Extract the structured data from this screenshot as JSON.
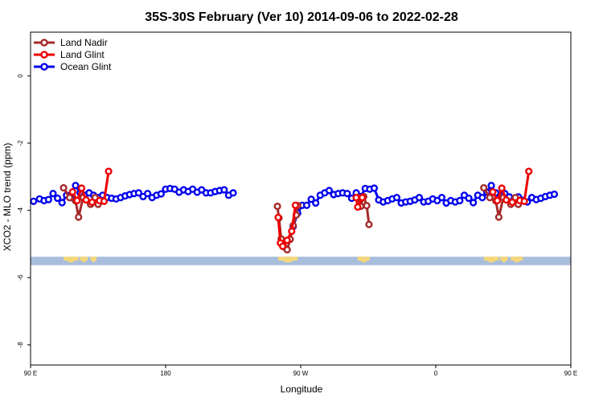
{
  "chart_data": {
    "type": "line",
    "title": "35S-30S February (Ver 10)   2014-09-06 to 2022-02-28",
    "xlabel": "Longitude",
    "ylabel": "XCO2 - MLO trend (ppm)",
    "xlim": [
      90,
      450
    ],
    "ylim": [
      -8.6,
      1.3
    ],
    "x_ticks": [
      {
        "value": 90,
        "label": "90 E"
      },
      {
        "value": 180,
        "label": "180"
      },
      {
        "value": 270,
        "label": "90 W"
      },
      {
        "value": 360,
        "label": "0"
      },
      {
        "value": 450,
        "label": "90 E"
      },
      {
        "value": 540,
        "label": "180"
      }
    ],
    "y_ticks": [
      {
        "value": 0,
        "label": "0"
      },
      {
        "value": -2,
        "label": "-2"
      },
      {
        "value": -4,
        "label": "-4"
      },
      {
        "value": -6,
        "label": "-6"
      },
      {
        "value": -8,
        "label": "-8"
      }
    ],
    "legend_position": "top-left",
    "land_strip": {
      "y_range": [
        -5.63,
        -5.38
      ],
      "ocean_color": "#a8bedc",
      "land_color": "#f5d77a"
    },
    "series": [
      {
        "name": "Land Nadir",
        "color": "#a52a2a",
        "segments": [
          [
            [
              112,
              -3.33
            ],
            [
              116,
              -3.62
            ],
            [
              120,
              -3.72
            ],
            [
              122,
              -4.2
            ],
            [
              125,
              -3.62
            ],
            [
              130,
              -3.82
            ],
            [
              133,
              -3.62
            ],
            [
              135,
              -3.82
            ]
          ],
          [
            [
              254.5,
              -3.88
            ],
            [
              255.5,
              -4.23
            ],
            [
              257,
              -4.85
            ],
            [
              258.5,
              -5.08
            ],
            [
              261,
              -5.17
            ],
            [
              263,
              -4.86
            ],
            [
              265,
              -4.45
            ],
            [
              267,
              -4.14
            ],
            [
              268,
              -3.86
            ]
          ],
          [
            [
              308.5,
              -3.62
            ],
            [
              310,
              -3.88
            ],
            [
              312,
              -3.59
            ],
            [
              314,
              -3.86
            ],
            [
              315.5,
              -4.42
            ]
          ],
          [
            [
              392,
              -3.33
            ],
            [
              396,
              -3.62
            ],
            [
              400,
              -3.72
            ],
            [
              402,
              -4.2
            ],
            [
              405,
              -3.62
            ],
            [
              410,
              -3.82
            ],
            [
              413,
              -3.62
            ],
            [
              415,
              -3.82
            ]
          ]
        ]
      },
      {
        "name": "Land Glint",
        "color": "#ee0000",
        "segments": [
          [
            [
              118,
              -3.45
            ],
            [
              121,
              -3.71
            ],
            [
              124,
              -3.34
            ],
            [
              127,
              -3.69
            ],
            [
              131,
              -3.76
            ],
            [
              136,
              -3.71
            ],
            [
              139,
              -3.73
            ],
            [
              142,
              -2.84
            ]
          ],
          [
            [
              255,
              -4.21
            ],
            [
              256.5,
              -4.97
            ],
            [
              258,
              -5.07
            ],
            [
              261,
              -4.89
            ],
            [
              264,
              -4.62
            ],
            [
              266.5,
              -3.85
            ]
          ],
          [
            [
              307,
              -3.62
            ],
            [
              308,
              -3.9
            ],
            [
              311,
              -3.62
            ]
          ],
          [
            [
              398,
              -3.45
            ],
            [
              401,
              -3.71
            ],
            [
              404,
              -3.34
            ],
            [
              407,
              -3.69
            ],
            [
              411,
              -3.76
            ],
            [
              416,
              -3.71
            ],
            [
              419,
              -3.73
            ],
            [
              422,
              -2.84
            ]
          ]
        ]
      },
      {
        "name": "Ocean Glint",
        "color": "#0000ee",
        "segments": [
          [
            [
              92,
              -3.73
            ],
            [
              96,
              -3.66
            ],
            [
              99,
              -3.71
            ],
            [
              102,
              -3.68
            ],
            [
              105,
              -3.5
            ],
            [
              108,
              -3.64
            ],
            [
              111,
              -3.77
            ],
            [
              114,
              -3.55
            ],
            [
              117,
              -3.62
            ],
            [
              120,
              -3.26
            ],
            [
              123,
              -3.48
            ],
            [
              126,
              -3.55
            ],
            [
              129,
              -3.48
            ],
            [
              132,
              -3.55
            ],
            [
              135,
              -3.62
            ],
            [
              138,
              -3.55
            ],
            [
              141,
              -3.62
            ],
            [
              144,
              -3.64
            ],
            [
              147,
              -3.66
            ],
            [
              150,
              -3.62
            ],
            [
              153,
              -3.57
            ],
            [
              156,
              -3.53
            ],
            [
              159,
              -3.5
            ],
            [
              162,
              -3.48
            ],
            [
              165,
              -3.59
            ],
            [
              168,
              -3.5
            ],
            [
              171,
              -3.62
            ],
            [
              174,
              -3.55
            ],
            [
              177,
              -3.51
            ],
            [
              180,
              -3.37
            ],
            [
              183,
              -3.35
            ],
            [
              186,
              -3.37
            ],
            [
              189,
              -3.46
            ],
            [
              192,
              -3.39
            ],
            [
              195,
              -3.44
            ],
            [
              198,
              -3.37
            ],
            [
              201,
              -3.46
            ],
            [
              204,
              -3.39
            ],
            [
              207,
              -3.48
            ],
            [
              210,
              -3.48
            ],
            [
              213,
              -3.44
            ],
            [
              216,
              -3.41
            ],
            [
              219,
              -3.39
            ],
            [
              222,
              -3.55
            ],
            [
              225,
              -3.48
            ]
          ],
          [
            [
              265,
              -4.48
            ],
            [
              268,
              -4.08
            ],
            [
              271,
              -3.85
            ],
            [
              274,
              -3.85
            ],
            [
              277,
              -3.67
            ],
            [
              280,
              -3.78
            ],
            [
              283,
              -3.55
            ],
            [
              286,
              -3.48
            ],
            [
              289,
              -3.41
            ],
            [
              292,
              -3.53
            ],
            [
              295,
              -3.5
            ],
            [
              298,
              -3.48
            ],
            [
              301,
              -3.5
            ],
            [
              304,
              -3.64
            ],
            [
              307,
              -3.48
            ],
            [
              310,
              -3.59
            ],
            [
              313,
              -3.35
            ],
            [
              316,
              -3.37
            ],
            [
              319,
              -3.34
            ],
            [
              322,
              -3.69
            ],
            [
              325,
              -3.75
            ],
            [
              328,
              -3.71
            ],
            [
              331,
              -3.66
            ],
            [
              334,
              -3.62
            ],
            [
              337,
              -3.78
            ],
            [
              340,
              -3.75
            ],
            [
              343,
              -3.73
            ],
            [
              346,
              -3.69
            ],
            [
              349,
              -3.62
            ],
            [
              352,
              -3.75
            ],
            [
              355,
              -3.73
            ],
            [
              358,
              -3.66
            ],
            [
              361,
              -3.71
            ],
            [
              364,
              -3.62
            ],
            [
              367,
              -3.78
            ],
            [
              370,
              -3.71
            ],
            [
              373,
              -3.75
            ],
            [
              376,
              -3.71
            ],
            [
              379,
              -3.55
            ],
            [
              382,
              -3.64
            ],
            [
              385,
              -3.77
            ],
            [
              388,
              -3.55
            ],
            [
              391,
              -3.62
            ],
            [
              394,
              -3.46
            ],
            [
              397,
              -3.26
            ],
            [
              400,
              -3.48
            ],
            [
              403,
              -3.57
            ],
            [
              406,
              -3.5
            ],
            [
              409,
              -3.6
            ],
            [
              412,
              -3.7
            ],
            [
              415,
              -3.6
            ],
            [
              418,
              -3.7
            ],
            [
              421,
              -3.75
            ],
            [
              424,
              -3.62
            ],
            [
              427,
              -3.68
            ],
            [
              430,
              -3.64
            ],
            [
              433,
              -3.59
            ],
            [
              436,
              -3.55
            ],
            [
              439,
              -3.52
            ]
          ]
        ]
      }
    ]
  }
}
